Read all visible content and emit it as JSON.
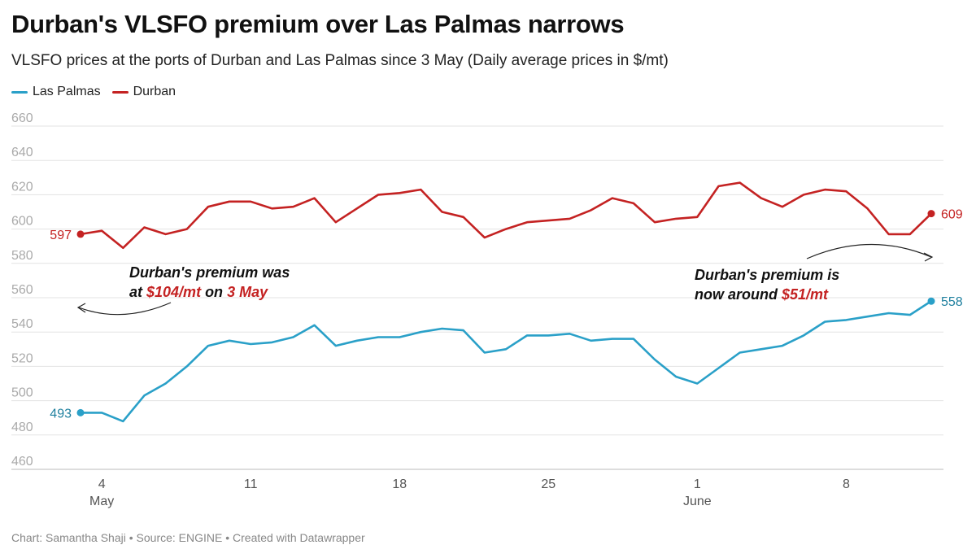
{
  "title": "Durban's VLSFO premium over Las Palmas narrows",
  "subtitle": "VLSFO prices at the ports of Durban and Las Palmas since 3 May (Daily average prices in $/mt)",
  "footer": "Chart: Samantha Shaji • Source: ENGINE • Created with Datawrapper",
  "annotations": {
    "left": {
      "line1": "Durban's premium was",
      "line2_pre": "at ",
      "line2_value": "$104/mt",
      "line2_mid": " on ",
      "line2_date": "3 May"
    },
    "right": {
      "line1": "Durban's premium is",
      "line2_pre": "now around ",
      "line2_value": "$51/mt"
    }
  },
  "chart_data": {
    "type": "line",
    "ylim": [
      460,
      660
    ],
    "yticks": [
      460,
      480,
      500,
      520,
      540,
      560,
      580,
      600,
      620,
      640,
      660
    ],
    "grid": true,
    "legend_position": "top-left",
    "xticks": [
      {
        "day": 4,
        "label": "4",
        "sublabel": "May"
      },
      {
        "day": 11,
        "label": "11",
        "sublabel": ""
      },
      {
        "day": 18,
        "label": "18",
        "sublabel": ""
      },
      {
        "day": 25,
        "label": "25",
        "sublabel": ""
      },
      {
        "day": 32,
        "label": "1",
        "sublabel": "June"
      },
      {
        "day": 39,
        "label": "8",
        "sublabel": ""
      }
    ],
    "x": [
      "3 May",
      "4 May",
      "5 May",
      "6 May",
      "7 May",
      "8 May",
      "9 May",
      "10 May",
      "11 May",
      "12 May",
      "13 May",
      "14 May",
      "15 May",
      "16 May",
      "17 May",
      "18 May",
      "19 May",
      "20 May",
      "21 May",
      "22 May",
      "23 May",
      "24 May",
      "25 May",
      "26 May",
      "27 May",
      "28 May",
      "29 May",
      "30 May",
      "31 May",
      "1 June",
      "2 June",
      "3 June",
      "4 June",
      "5 June",
      "6 June",
      "7 June",
      "8 June",
      "9 June",
      "10 June",
      "11 June",
      "12 June"
    ],
    "series": [
      {
        "name": "Las Palmas",
        "color": "#2aa0c8",
        "end_label_color": "#1d7f9e",
        "start_label": "493",
        "end_label": "558",
        "values": [
          493,
          493,
          488,
          503,
          510,
          520,
          532,
          535,
          533,
          534,
          537,
          544,
          532,
          535,
          537,
          537,
          540,
          542,
          541,
          528,
          530,
          538,
          538,
          539,
          535,
          536,
          536,
          524,
          514,
          510,
          519,
          528,
          530,
          532,
          538,
          546,
          547,
          549,
          551,
          550,
          558
        ]
      },
      {
        "name": "Durban",
        "color": "#c42222",
        "end_label_color": "#c42222",
        "start_label": "597",
        "end_label": "609",
        "values": [
          597,
          599,
          589,
          601,
          597,
          600,
          613,
          616,
          616,
          612,
          613,
          618,
          604,
          612,
          620,
          621,
          623,
          610,
          607,
          595,
          600,
          604,
          605,
          606,
          611,
          618,
          615,
          604,
          606,
          607,
          625,
          627,
          618,
          613,
          620,
          623,
          622,
          612,
          597,
          597,
          609
        ]
      }
    ]
  }
}
